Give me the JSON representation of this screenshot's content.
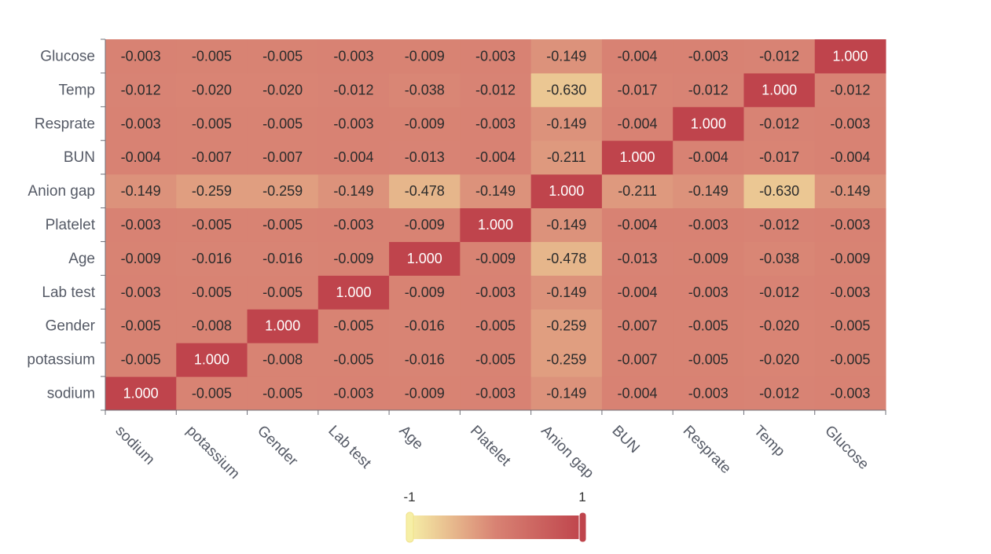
{
  "chart_data": {
    "type": "heatmap",
    "title": "",
    "xlabel": "",
    "ylabel": "",
    "x_categories": [
      "sodium",
      "potassium",
      "Gender",
      "Lab test",
      "Age",
      "Platelet",
      "Anion gap",
      "BUN",
      "Resprate",
      "Temp",
      "Glucose"
    ],
    "y_categories": [
      "sodium",
      "potassium",
      "Gender",
      "Lab test",
      "Age",
      "Platelet",
      "Anion gap",
      "BUN",
      "Resprate",
      "Temp",
      "Glucose"
    ],
    "values": [
      [
        "1.000",
        "-0.005",
        "-0.005",
        "-0.003",
        "-0.009",
        "-0.003",
        "-0.149",
        "-0.004",
        "-0.003",
        "-0.012",
        "-0.003"
      ],
      [
        "-0.005",
        "1.000",
        "-0.008",
        "-0.005",
        "-0.016",
        "-0.005",
        "-0.259",
        "-0.007",
        "-0.005",
        "-0.020",
        "-0.005"
      ],
      [
        "-0.005",
        "-0.008",
        "1.000",
        "-0.005",
        "-0.016",
        "-0.005",
        "-0.259",
        "-0.007",
        "-0.005",
        "-0.020",
        "-0.005"
      ],
      [
        "-0.003",
        "-0.005",
        "-0.005",
        "1.000",
        "-0.009",
        "-0.003",
        "-0.149",
        "-0.004",
        "-0.003",
        "-0.012",
        "-0.003"
      ],
      [
        "-0.009",
        "-0.016",
        "-0.016",
        "-0.009",
        "1.000",
        "-0.009",
        "-0.478",
        "-0.013",
        "-0.009",
        "-0.038",
        "-0.009"
      ],
      [
        "-0.003",
        "-0.005",
        "-0.005",
        "-0.003",
        "-0.009",
        "1.000",
        "-0.149",
        "-0.004",
        "-0.003",
        "-0.012",
        "-0.003"
      ],
      [
        "-0.149",
        "-0.259",
        "-0.259",
        "-0.149",
        "-0.478",
        "-0.149",
        "1.000",
        "-0.211",
        "-0.149",
        "-0.630",
        "-0.149"
      ],
      [
        "-0.004",
        "-0.007",
        "-0.007",
        "-0.004",
        "-0.013",
        "-0.004",
        "-0.211",
        "1.000",
        "-0.004",
        "-0.017",
        "-0.004"
      ],
      [
        "-0.003",
        "-0.005",
        "-0.005",
        "-0.003",
        "-0.009",
        "-0.003",
        "-0.149",
        "-0.004",
        "1.000",
        "-0.012",
        "-0.003"
      ],
      [
        "-0.012",
        "-0.020",
        "-0.020",
        "-0.012",
        "-0.038",
        "-0.012",
        "-0.630",
        "-0.017",
        "-0.012",
        "1.000",
        "-0.012"
      ],
      [
        "-0.003",
        "-0.005",
        "-0.005",
        "-0.003",
        "-0.009",
        "-0.003",
        "-0.149",
        "-0.004",
        "-0.003",
        "-0.012",
        "1.000"
      ]
    ],
    "value_range": [
      -1,
      1
    ],
    "visual_map": {
      "min_label": "-1",
      "max_label": "1"
    },
    "color_scale": [
      "#f6efa6",
      "#d88273",
      "#bf444c"
    ],
    "grid": false,
    "legend": "bottom-center"
  }
}
